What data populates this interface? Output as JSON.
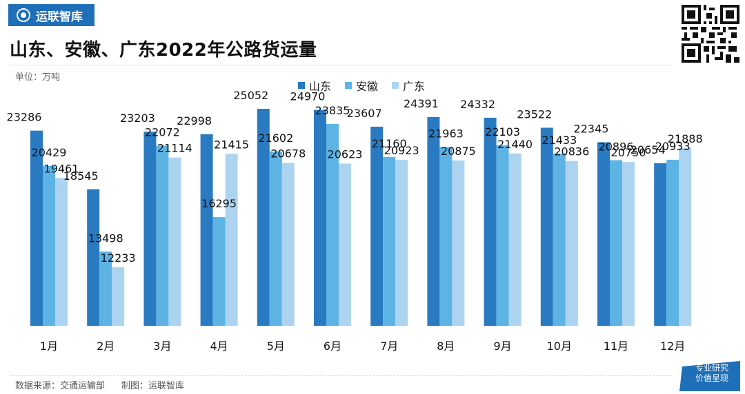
{
  "brand": {
    "name": "运联智库",
    "badge_line1": "专业研究",
    "badge_line2": "价值呈现"
  },
  "colors": {
    "brand": "#1f6fb8",
    "series1": "#2a7ac1",
    "series2": "#5cb3e4",
    "series3": "#acd4f0"
  },
  "header": {
    "title": "山东、安徽、广东2022年公路货运量",
    "unit": "单位：万吨"
  },
  "footer": {
    "source": "数据来源：交通运输部",
    "made_by": "制图：运联智库"
  },
  "chart_data": {
    "type": "bar",
    "title": "山东、安徽、广东2022年公路货运量",
    "unit": "万吨",
    "categories": [
      "1月",
      "2月",
      "3月",
      "4月",
      "5月",
      "6月",
      "7月",
      "8月",
      "9月",
      "10月",
      "11月",
      "12月"
    ],
    "series": [
      {
        "name": "山东",
        "values": [
          23286,
          18545,
          23203,
          22998,
          25052,
          24970,
          23607,
          24391,
          24332,
          23522,
          22345,
          20654
        ]
      },
      {
        "name": "安徽",
        "values": [
          20429,
          13498,
          22072,
          16295,
          21602,
          23835,
          21160,
          21963,
          22103,
          21433,
          20896,
          20933
        ]
      },
      {
        "name": "广东",
        "values": [
          19461,
          12233,
          21114,
          21415,
          20678,
          20623,
          20923,
          20875,
          21440,
          20836,
          20750,
          21888
        ]
      }
    ],
    "ylim": [
      7500,
      26500
    ],
    "legend": "top-center",
    "grid": false,
    "data_labels": true
  }
}
